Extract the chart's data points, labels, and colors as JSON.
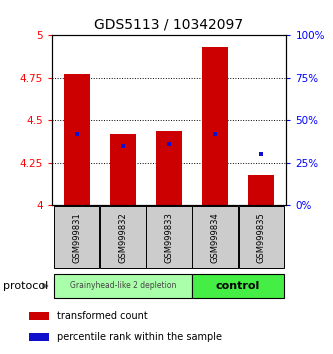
{
  "title": "GDS5113 / 10342097",
  "samples": [
    "GSM999831",
    "GSM999832",
    "GSM999833",
    "GSM999834",
    "GSM999835"
  ],
  "red_bar_heights": [
    4.77,
    4.42,
    4.44,
    4.93,
    4.18
  ],
  "blue_dot_values": [
    4.42,
    4.35,
    4.36,
    4.42,
    4.3
  ],
  "ylim": [
    4.0,
    5.0
  ],
  "yticks_left": [
    4.0,
    4.25,
    4.5,
    4.75,
    5.0
  ],
  "yticks_right": [
    0,
    25,
    50,
    75,
    100
  ],
  "bar_color": "#cc0000",
  "blue_color": "#1010cc",
  "group1_label": "Grainyhead-like 2 depletion",
  "group2_label": "control",
  "group1_color": "#aaffaa",
  "group2_color": "#44ee44",
  "group1_indices": [
    0,
    1,
    2
  ],
  "group2_indices": [
    3,
    4
  ],
  "bar_width": 0.55,
  "protocol_label": "protocol"
}
